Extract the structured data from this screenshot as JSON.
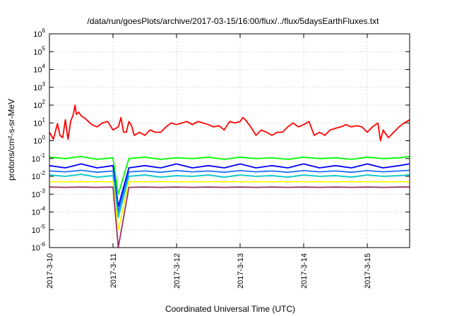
{
  "chart_data": {
    "type": "line",
    "title": "/data/run/goesPlots/archive/2017-03-15/16:00/flux/../flux/5daysEarthFluxes.txt",
    "xlabel": "Coordinated Universal Time (UTC)",
    "ylabel": "protons/cm²-s-sr-MeV",
    "scale_y": "log",
    "grid": true,
    "legend": "none",
    "xlim": [
      "2017-03-10T00:00",
      "2017-03-15T16:00"
    ],
    "ylim": [
      1e-06,
      1000000.0
    ],
    "x_ticks": [
      "2017-3-10",
      "2017-3-11",
      "2017-3-12",
      "2017-3-13",
      "2017-3-14",
      "2017-3-15"
    ],
    "y_ticks": [
      {
        "value": 1e-06,
        "base": "10",
        "exp": "-6"
      },
      {
        "value": 1e-05,
        "base": "10",
        "exp": "-5"
      },
      {
        "value": 0.0001,
        "base": "10",
        "exp": "-4"
      },
      {
        "value": 0.001,
        "base": "10",
        "exp": "-3"
      },
      {
        "value": 0.01,
        "base": "10",
        "exp": "-2"
      },
      {
        "value": 0.1,
        "base": "10",
        "exp": "-1"
      },
      {
        "value": 1,
        "base": "10",
        "exp": "0"
      },
      {
        "value": 10,
        "base": "10",
        "exp": "1"
      },
      {
        "value": 100,
        "base": "10",
        "exp": "2"
      },
      {
        "value": 1000,
        "base": "10",
        "exp": "3"
      },
      {
        "value": 10000,
        "base": "10",
        "exp": "4"
      },
      {
        "value": 100000,
        "base": "10",
        "exp": "5"
      },
      {
        "value": 1000000,
        "base": "10",
        "exp": "6"
      }
    ],
    "series": [
      {
        "color": "#ff0000",
        "x": [
          "2017-03-10T00:00",
          "2017-03-10T01:30",
          "2017-03-10T03:00",
          "2017-03-10T04:00",
          "2017-03-10T05:00",
          "2017-03-10T06:00",
          "2017-03-10T07:00",
          "2017-03-10T08:00",
          "2017-03-10T09:00",
          "2017-03-10T09:40",
          "2017-03-10T10:10",
          "2017-03-10T11:00",
          "2017-03-10T12:00",
          "2017-03-10T13:00",
          "2017-03-10T14:00",
          "2017-03-10T16:00",
          "2017-03-10T18:00",
          "2017-03-10T20:00",
          "2017-03-10T22:00",
          "2017-03-11T00:00",
          "2017-03-11T02:00",
          "2017-03-11T03:00",
          "2017-03-11T04:00",
          "2017-03-11T05:00",
          "2017-03-11T06:00",
          "2017-03-11T07:00",
          "2017-03-11T08:00",
          "2017-03-11T10:00",
          "2017-03-11T12:00",
          "2017-03-11T14:00",
          "2017-03-11T16:00",
          "2017-03-11T18:00",
          "2017-03-11T20:00",
          "2017-03-11T22:00",
          "2017-03-12T00:00",
          "2017-03-12T02:00",
          "2017-03-12T04:00",
          "2017-03-12T06:00",
          "2017-03-12T08:00",
          "2017-03-12T10:00",
          "2017-03-12T12:00",
          "2017-03-12T14:00",
          "2017-03-12T16:00",
          "2017-03-12T18:00",
          "2017-03-12T20:00",
          "2017-03-12T22:00",
          "2017-03-13T00:00",
          "2017-03-13T01:00",
          "2017-03-13T02:00",
          "2017-03-13T04:00",
          "2017-03-13T06:00",
          "2017-03-13T08:00",
          "2017-03-13T10:00",
          "2017-03-13T12:00",
          "2017-03-13T14:00",
          "2017-03-13T16:00",
          "2017-03-13T18:00",
          "2017-03-13T20:00",
          "2017-03-13T22:00",
          "2017-03-14T00:00",
          "2017-03-14T02:00",
          "2017-03-14T04:00",
          "2017-03-14T06:00",
          "2017-03-14T08:00",
          "2017-03-14T10:00",
          "2017-03-14T12:00",
          "2017-03-14T14:00",
          "2017-03-14T16:00",
          "2017-03-14T18:00",
          "2017-03-14T20:00",
          "2017-03-14T22:00",
          "2017-03-15T00:00",
          "2017-03-15T02:00",
          "2017-03-15T04:00",
          "2017-03-15T05:00",
          "2017-03-15T06:00",
          "2017-03-15T08:00",
          "2017-03-15T10:00",
          "2017-03-15T12:00",
          "2017-03-15T14:00",
          "2017-03-15T16:00"
        ],
        "y": [
          3,
          1.2,
          9,
          2,
          1.5,
          15,
          1.2,
          12,
          30,
          100,
          30,
          40,
          25,
          20,
          15,
          8,
          6,
          10,
          12,
          4,
          6,
          20,
          3,
          3,
          12,
          7,
          2,
          3,
          2,
          4,
          3,
          3,
          6,
          10,
          8,
          10,
          12,
          8,
          12,
          10,
          8,
          6,
          7,
          4,
          12,
          10,
          12,
          20,
          15,
          6,
          2,
          4,
          3,
          2,
          3,
          3,
          6,
          10,
          6,
          8,
          12,
          2,
          3,
          2,
          4,
          5,
          6,
          8,
          6,
          7,
          6,
          3,
          6,
          10,
          1,
          4,
          1.5,
          3,
          6,
          10,
          15
        ]
      },
      {
        "color": "#00ff00",
        "x": [
          "2017-03-10T00:00",
          "2017-03-10T06:00",
          "2017-03-10T12:00",
          "2017-03-10T18:00",
          "2017-03-11T00:00",
          "2017-03-11T02:00",
          "2017-03-11T06:00",
          "2017-03-11T12:00",
          "2017-03-11T18:00",
          "2017-03-12T00:00",
          "2017-03-12T06:00",
          "2017-03-12T12:00",
          "2017-03-12T18:00",
          "2017-03-13T00:00",
          "2017-03-13T06:00",
          "2017-03-13T12:00",
          "2017-03-13T18:00",
          "2017-03-14T00:00",
          "2017-03-14T06:00",
          "2017-03-14T12:00",
          "2017-03-14T18:00",
          "2017-03-15T00:00",
          "2017-03-15T06:00",
          "2017-03-15T12:00",
          "2017-03-15T16:00"
        ],
        "y": [
          0.12,
          0.1,
          0.13,
          0.09,
          0.11,
          0.001,
          0.1,
          0.12,
          0.09,
          0.11,
          0.1,
          0.12,
          0.09,
          0.12,
          0.1,
          0.11,
          0.09,
          0.12,
          0.1,
          0.11,
          0.09,
          0.12,
          0.1,
          0.11,
          0.13
        ]
      },
      {
        "color": "#0000ff",
        "x": [
          "2017-03-10T00:00",
          "2017-03-10T06:00",
          "2017-03-10T12:00",
          "2017-03-10T18:00",
          "2017-03-11T00:00",
          "2017-03-11T02:00",
          "2017-03-11T06:00",
          "2017-03-11T12:00",
          "2017-03-11T18:00",
          "2017-03-12T00:00",
          "2017-03-12T06:00",
          "2017-03-12T12:00",
          "2017-03-12T18:00",
          "2017-03-13T00:00",
          "2017-03-13T06:00",
          "2017-03-13T12:00",
          "2017-03-13T18:00",
          "2017-03-14T00:00",
          "2017-03-14T06:00",
          "2017-03-14T12:00",
          "2017-03-14T18:00",
          "2017-03-15T00:00",
          "2017-03-15T06:00",
          "2017-03-15T12:00",
          "2017-03-15T16:00"
        ],
        "y": [
          0.04,
          0.03,
          0.05,
          0.03,
          0.04,
          0.0002,
          0.03,
          0.04,
          0.03,
          0.05,
          0.03,
          0.04,
          0.03,
          0.05,
          0.03,
          0.04,
          0.03,
          0.05,
          0.03,
          0.04,
          0.03,
          0.05,
          0.03,
          0.04,
          0.05
        ]
      },
      {
        "color": "#1e6fff",
        "x": [
          "2017-03-10T00:00",
          "2017-03-10T06:00",
          "2017-03-10T12:00",
          "2017-03-10T18:00",
          "2017-03-11T00:00",
          "2017-03-11T02:00",
          "2017-03-11T06:00",
          "2017-03-11T12:00",
          "2017-03-11T18:00",
          "2017-03-12T00:00",
          "2017-03-12T06:00",
          "2017-03-12T12:00",
          "2017-03-12T18:00",
          "2017-03-13T00:00",
          "2017-03-13T06:00",
          "2017-03-13T12:00",
          "2017-03-13T18:00",
          "2017-03-14T00:00",
          "2017-03-14T06:00",
          "2017-03-14T12:00",
          "2017-03-14T18:00",
          "2017-03-15T00:00",
          "2017-03-15T06:00",
          "2017-03-15T12:00",
          "2017-03-15T16:00"
        ],
        "y": [
          0.02,
          0.018,
          0.022,
          0.017,
          0.02,
          0.0001,
          0.018,
          0.02,
          0.017,
          0.021,
          0.018,
          0.02,
          0.017,
          0.021,
          0.018,
          0.02,
          0.017,
          0.021,
          0.018,
          0.02,
          0.017,
          0.021,
          0.018,
          0.02,
          0.022
        ]
      },
      {
        "color": "#00c8c8",
        "x": [
          "2017-03-10T00:00",
          "2017-03-10T06:00",
          "2017-03-10T12:00",
          "2017-03-10T18:00",
          "2017-03-11T00:00",
          "2017-03-11T02:00",
          "2017-03-11T06:00",
          "2017-03-11T12:00",
          "2017-03-11T18:00",
          "2017-03-12T00:00",
          "2017-03-12T06:00",
          "2017-03-12T12:00",
          "2017-03-12T18:00",
          "2017-03-13T00:00",
          "2017-03-13T06:00",
          "2017-03-13T12:00",
          "2017-03-13T18:00",
          "2017-03-14T00:00",
          "2017-03-14T06:00",
          "2017-03-14T12:00",
          "2017-03-14T18:00",
          "2017-03-15T00:00",
          "2017-03-15T06:00",
          "2017-03-15T12:00",
          "2017-03-15T16:00"
        ],
        "y": [
          0.012,
          0.01,
          0.013,
          0.009,
          0.011,
          5e-05,
          0.01,
          0.012,
          0.009,
          0.011,
          0.01,
          0.012,
          0.009,
          0.012,
          0.01,
          0.011,
          0.009,
          0.012,
          0.01,
          0.011,
          0.009,
          0.012,
          0.01,
          0.011,
          0.012
        ]
      },
      {
        "color": "#ffff00",
        "x": [
          "2017-03-10T00:00",
          "2017-03-10T06:00",
          "2017-03-10T12:00",
          "2017-03-10T18:00",
          "2017-03-11T00:00",
          "2017-03-11T02:00",
          "2017-03-11T06:00",
          "2017-03-11T12:00",
          "2017-03-11T18:00",
          "2017-03-12T00:00",
          "2017-03-12T06:00",
          "2017-03-12T12:00",
          "2017-03-12T18:00",
          "2017-03-13T00:00",
          "2017-03-13T06:00",
          "2017-03-13T12:00",
          "2017-03-13T18:00",
          "2017-03-14T00:00",
          "2017-03-14T06:00",
          "2017-03-14T12:00",
          "2017-03-14T18:00",
          "2017-03-15T00:00",
          "2017-03-15T06:00",
          "2017-03-15T12:00",
          "2017-03-15T16:00"
        ],
        "y": [
          0.005,
          0.005,
          0.005,
          0.005,
          0.005,
          1e-05,
          0.005,
          0.005,
          0.005,
          0.005,
          0.005,
          0.005,
          0.005,
          0.005,
          0.005,
          0.005,
          0.005,
          0.005,
          0.005,
          0.005,
          0.005,
          0.005,
          0.005,
          0.005,
          0.005
        ]
      },
      {
        "color": "#993366",
        "x": [
          "2017-03-10T00:00",
          "2017-03-10T06:00",
          "2017-03-10T12:00",
          "2017-03-10T18:00",
          "2017-03-11T00:00",
          "2017-03-11T02:00",
          "2017-03-11T06:00",
          "2017-03-11T12:00",
          "2017-03-11T18:00",
          "2017-03-12T00:00",
          "2017-03-12T06:00",
          "2017-03-12T12:00",
          "2017-03-12T18:00",
          "2017-03-13T00:00",
          "2017-03-13T06:00",
          "2017-03-13T12:00",
          "2017-03-13T18:00",
          "2017-03-14T00:00",
          "2017-03-14T06:00",
          "2017-03-14T12:00",
          "2017-03-14T18:00",
          "2017-03-15T00:00",
          "2017-03-15T06:00",
          "2017-03-15T12:00",
          "2017-03-15T16:00"
        ],
        "y": [
          0.0025,
          0.0024,
          0.0025,
          0.0024,
          0.0025,
          1e-06,
          0.0024,
          0.0025,
          0.0024,
          0.0025,
          0.0024,
          0.0025,
          0.0024,
          0.0025,
          0.0024,
          0.0025,
          0.0024,
          0.0025,
          0.0024,
          0.0025,
          0.0024,
          0.0025,
          0.0024,
          0.0025,
          0.0025
        ]
      }
    ]
  }
}
